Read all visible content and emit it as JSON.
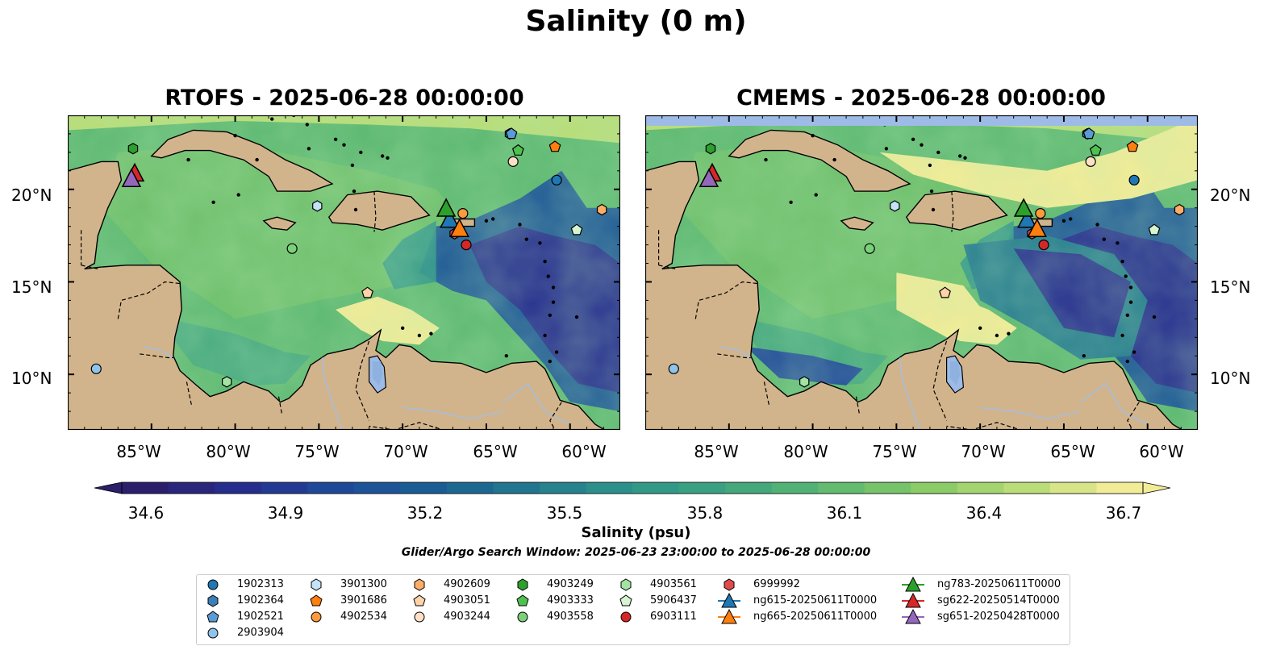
{
  "suptitle": "Salinity (0 m)",
  "panels": [
    {
      "title": "RTOFS - 2025-06-28 00:00:00"
    },
    {
      "title": "CMEMS - 2025-06-28 00:00:00"
    }
  ],
  "chart_data": {
    "type": "heatmap",
    "title": "Salinity (0 m)",
    "lon_range": [
      -90,
      -57
    ],
    "lat_range": [
      7,
      24
    ],
    "x_ticks": [
      "85°W",
      "80°W",
      "75°W",
      "70°W",
      "65°W",
      "60°W"
    ],
    "y_ticks": [
      "10°N",
      "15°N",
      "20°N"
    ],
    "colorbar": {
      "label": "Salinity (psu)",
      "ticks": [
        "34.6",
        "34.9",
        "35.2",
        "35.5",
        "35.8",
        "36.1",
        "36.4",
        "36.7"
      ],
      "range": [
        34.6,
        36.7
      ],
      "colormap": [
        "#2b1f6b",
        "#262e8f",
        "#1f4b99",
        "#1a5f93",
        "#237a8e",
        "#2f968a",
        "#3fa47f",
        "#5cb870",
        "#86ca66",
        "#b8dc76",
        "#f3ec96"
      ]
    },
    "profiles": [
      {
        "name": "1902313",
        "marker": "circle",
        "color": "#1f77b4",
        "lon": -60.8,
        "lat": 20.5
      },
      {
        "name": "1902364",
        "marker": "hexagon",
        "color": "#3a7fb8",
        "lon": -63.6,
        "lat": 23.0
      },
      {
        "name": "1902521",
        "marker": "pentagon",
        "color": "#5b9bd5",
        "lon": -63.5,
        "lat": 23.0
      },
      {
        "name": "2903904",
        "marker": "circle",
        "color": "#8fc3ea",
        "lon": -88.3,
        "lat": 10.3
      },
      {
        "name": "3901300",
        "marker": "hexagon",
        "color": "#c6e2f7",
        "lon": -75.1,
        "lat": 19.1
      },
      {
        "name": "3901686",
        "marker": "pentagon",
        "color": "#ff7f0e",
        "lon": -60.9,
        "lat": 22.3
      },
      {
        "name": "4902534",
        "marker": "circle",
        "color": "#ff9a3c",
        "lon": -66.4,
        "lat": 18.7
      },
      {
        "name": "4902609",
        "marker": "hexagon",
        "color": "#ffad66",
        "lon": -58.1,
        "lat": 18.9
      },
      {
        "name": "4903051",
        "marker": "pentagon",
        "color": "#ffd2a8",
        "lon": -72.1,
        "lat": 14.4
      },
      {
        "name": "4903244",
        "marker": "circle",
        "color": "#fde0c5",
        "lon": -63.4,
        "lat": 21.5
      },
      {
        "name": "4903249",
        "marker": "hexagon",
        "color": "#2ca02c",
        "lon": -86.1,
        "lat": 22.2
      },
      {
        "name": "4903333",
        "marker": "pentagon",
        "color": "#4fc14f",
        "lon": -63.1,
        "lat": 22.1
      },
      {
        "name": "4903558",
        "marker": "circle",
        "color": "#7ad17a",
        "lon": -76.6,
        "lat": 16.8
      },
      {
        "name": "4903561",
        "marker": "hexagon",
        "color": "#a3e3a3",
        "lon": -80.5,
        "lat": 9.6
      },
      {
        "name": "5906437",
        "marker": "pentagon",
        "color": "#d4f5cf",
        "lon": -59.6,
        "lat": 17.8
      },
      {
        "name": "6903111",
        "marker": "circle",
        "color": "#d62728",
        "lon": -66.2,
        "lat": 17.0
      },
      {
        "name": "6999992",
        "marker": "hexagon",
        "color": "#e04a4a",
        "lon": -66.9,
        "lat": 17.6
      }
    ],
    "gliders": [
      {
        "name": "ng615-20250611T0000",
        "marker": "triangle",
        "color": "#1f77b4",
        "lon": -67.2,
        "lat": 18.3
      },
      {
        "name": "ng665-20250611T0000",
        "marker": "triangle",
        "color": "#ff7f0e",
        "lon": -66.6,
        "lat": 17.8
      },
      {
        "name": "ng783-20250611T0000",
        "marker": "triangle",
        "color": "#2ca02c",
        "lon": -67.4,
        "lat": 18.9
      },
      {
        "name": "sg622-20250514T0000",
        "marker": "triangle",
        "color": "#d62728",
        "lon": -86.0,
        "lat": 20.8
      },
      {
        "name": "sg651-20250428T0000",
        "marker": "triangle",
        "color": "#9467bd",
        "lon": -86.2,
        "lat": 20.5
      }
    ]
  },
  "search_window": "Glider/Argo Search Window: 2025-06-23 23:00:00 to 2025-06-28 00:00:00",
  "legend": [
    "1902313",
    "1902364",
    "1902521",
    "2903904",
    "3901300",
    "3901686",
    "4902534",
    "4902609",
    "4903051",
    "4903244",
    "4903249",
    "4903333",
    "4903558",
    "4903561",
    "5906437",
    "6903111",
    "6999992",
    "ng615-20250611T0000",
    "ng665-20250611T0000",
    "ng783-20250611T0000",
    "sg622-20250514T0000",
    "sg651-20250428T0000"
  ]
}
